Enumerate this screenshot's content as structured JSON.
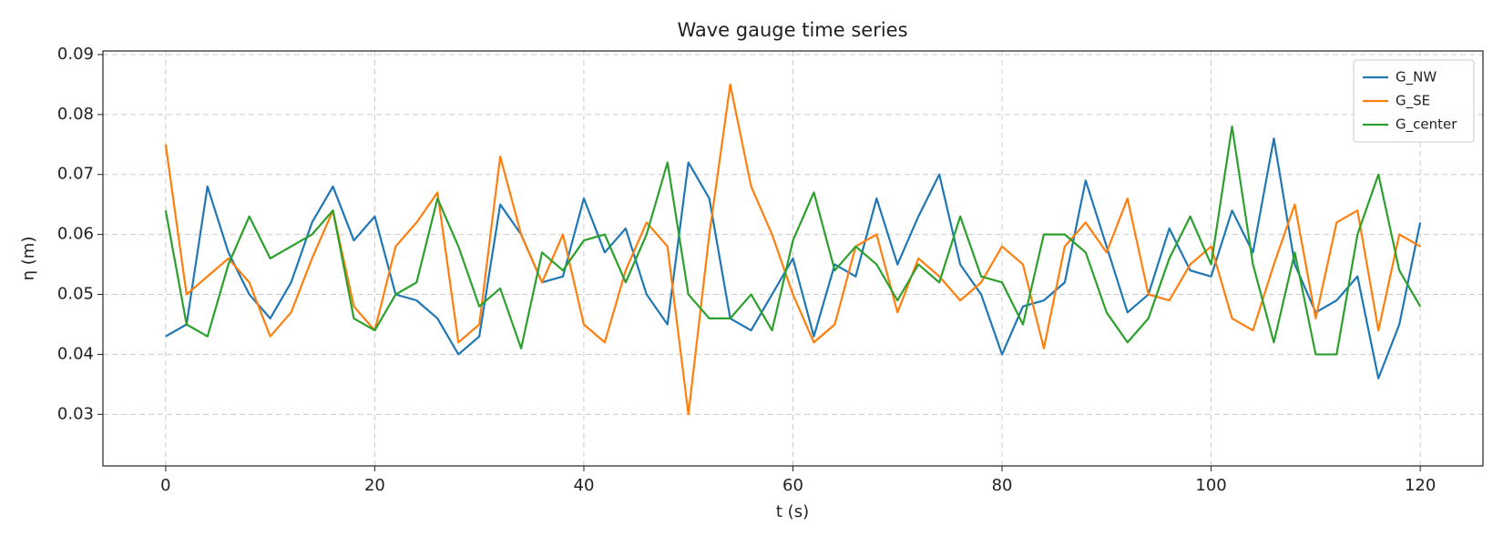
{
  "chart_data": {
    "type": "line",
    "title": "Wave gauge time series",
    "x_label": "t  (s)",
    "y_label": "η  (m)",
    "x": [
      0,
      2,
      4,
      6,
      8,
      10,
      12,
      14,
      16,
      18,
      20,
      22,
      24,
      26,
      28,
      30,
      32,
      34,
      36,
      38,
      40,
      42,
      44,
      46,
      48,
      50,
      52,
      54,
      56,
      58,
      60,
      62,
      64,
      66,
      68,
      70,
      72,
      74,
      76,
      78,
      80,
      82,
      84,
      86,
      88,
      90,
      92,
      94,
      96,
      98,
      100,
      102,
      104,
      106,
      108,
      110,
      112,
      114,
      116,
      118,
      120
    ],
    "series": [
      {
        "name": "G_NW",
        "color": "#1f77b4",
        "values": [
          0.043,
          0.045,
          0.068,
          0.057,
          0.05,
          0.046,
          0.052,
          0.062,
          0.068,
          0.059,
          0.063,
          0.05,
          0.049,
          0.046,
          0.04,
          0.043,
          0.065,
          0.06,
          0.052,
          0.053,
          0.066,
          0.057,
          0.061,
          0.05,
          0.045,
          0.072,
          0.066,
          0.046,
          0.044,
          0.05,
          0.056,
          0.043,
          0.055,
          0.053,
          0.066,
          0.055,
          0.063,
          0.07,
          0.055,
          0.05,
          0.04,
          0.048,
          0.049,
          0.052,
          0.069,
          0.058,
          0.047,
          0.05,
          0.061,
          0.054,
          0.053,
          0.064,
          0.057,
          0.076,
          0.055,
          0.047,
          0.049,
          0.053,
          0.036,
          0.045,
          0.062
        ]
      },
      {
        "name": "G_SE",
        "color": "#ff7f0e",
        "values": [
          0.075,
          0.05,
          0.053,
          0.056,
          0.052,
          0.043,
          0.047,
          0.056,
          0.064,
          0.048,
          0.044,
          0.058,
          0.062,
          0.067,
          0.042,
          0.045,
          0.073,
          0.06,
          0.052,
          0.06,
          0.045,
          0.042,
          0.054,
          0.062,
          0.058,
          0.03,
          0.06,
          0.085,
          0.068,
          0.06,
          0.05,
          0.042,
          0.045,
          0.058,
          0.06,
          0.047,
          0.056,
          0.053,
          0.049,
          0.052,
          0.058,
          0.055,
          0.041,
          0.058,
          0.062,
          0.057,
          0.066,
          0.05,
          0.049,
          0.055,
          0.058,
          0.046,
          0.044,
          0.055,
          0.065,
          0.046,
          0.062,
          0.064,
          0.044,
          0.06,
          0.058
        ]
      },
      {
        "name": "G_center",
        "color": "#2ca02c",
        "values": [
          0.064,
          0.045,
          0.043,
          0.055,
          0.063,
          0.056,
          0.058,
          0.06,
          0.064,
          0.046,
          0.044,
          0.05,
          0.052,
          0.066,
          0.058,
          0.048,
          0.051,
          0.041,
          0.057,
          0.054,
          0.059,
          0.06,
          0.052,
          0.06,
          0.072,
          0.05,
          0.046,
          0.046,
          0.05,
          0.044,
          0.059,
          0.067,
          0.054,
          0.058,
          0.055,
          0.049,
          0.055,
          0.052,
          0.063,
          0.053,
          0.052,
          0.045,
          0.06,
          0.06,
          0.057,
          0.047,
          0.042,
          0.046,
          0.056,
          0.063,
          0.055,
          0.078,
          0.055,
          0.042,
          0.057,
          0.04,
          0.04,
          0.06,
          0.07,
          0.054,
          0.048
        ]
      }
    ],
    "xlim": [
      -6,
      126
    ],
    "ylim": [
      0.0214,
      0.0906
    ],
    "xticks": [
      0,
      20,
      40,
      60,
      80,
      100,
      120
    ],
    "yticks": [
      0.03,
      0.04,
      0.05,
      0.06,
      0.07,
      0.08,
      0.09
    ],
    "grid": true,
    "legend": "upper right"
  }
}
